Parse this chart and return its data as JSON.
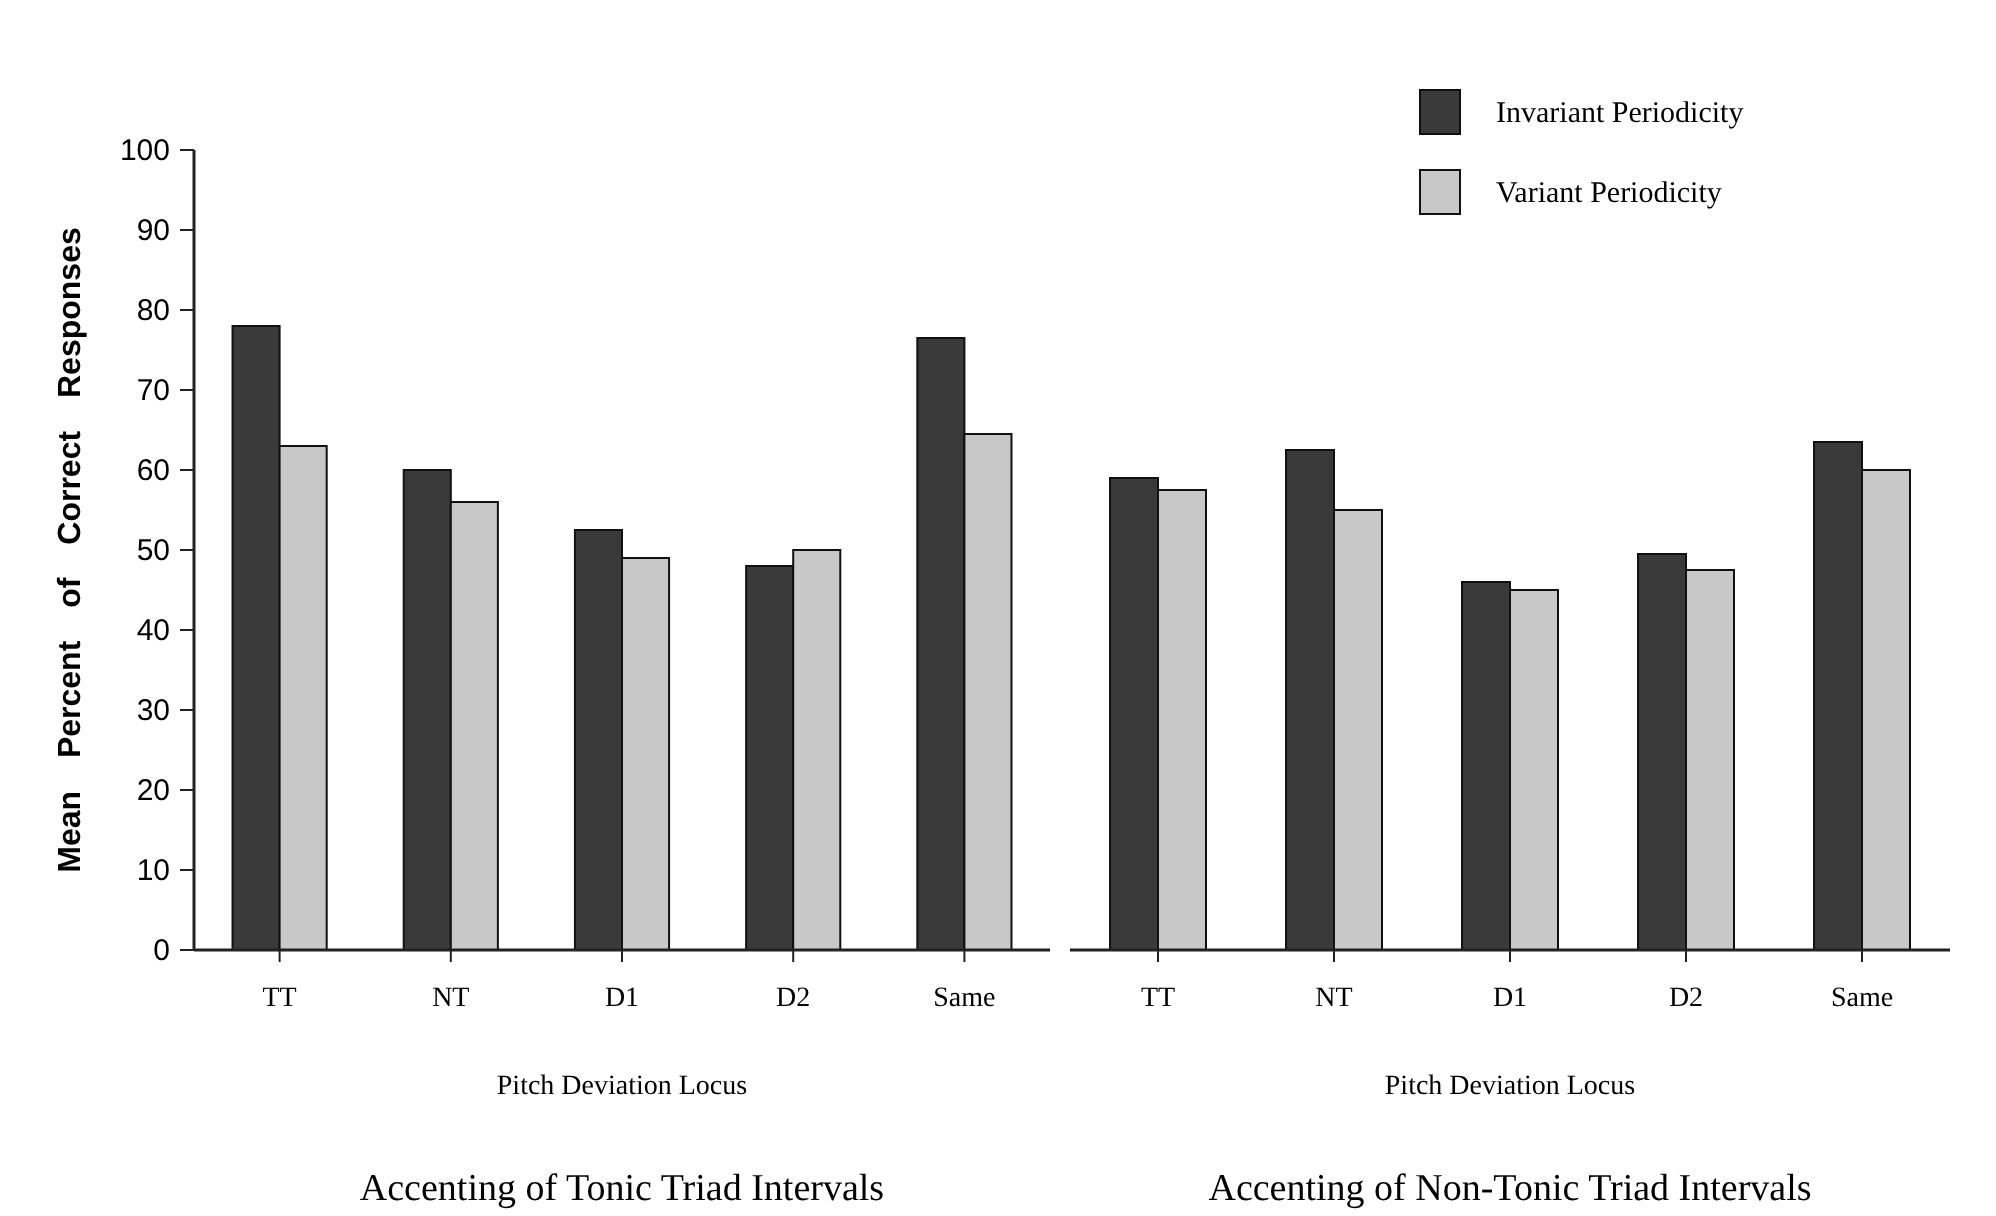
{
  "chart_data": [
    {
      "type": "bar",
      "title": "Accenting of Tonic Triad Intervals",
      "xlabel": "Pitch Deviation Locus",
      "ylabel": "Mean Percent of Correct Responses",
      "categories": [
        "TT",
        "NT",
        "D1",
        "D2",
        "Same"
      ],
      "series": [
        {
          "color": "#3a3a3a",
          "values": [
            78,
            60,
            52.5,
            48,
            76.5
          ]
        },
        {
          "color": "#c8c8c8",
          "values": [
            63,
            56,
            49,
            50,
            64.5
          ]
        }
      ],
      "ylim": [
        0,
        100
      ],
      "yticks": [
        0,
        10,
        20,
        30,
        40,
        50,
        60,
        70,
        80,
        90,
        100
      ],
      "grid": false,
      "legend": false
    },
    {
      "type": "bar",
      "title": "Accenting of Non-Tonic Triad Intervals",
      "xlabel": "Pitch Deviation Locus",
      "categories": [
        "TT",
        "NT",
        "D1",
        "D2",
        "Same"
      ],
      "series": [
        {
          "name": "Invariant Periodicity",
          "color": "#3a3a3a",
          "values": [
            59,
            62.5,
            46,
            49.5,
            63.5
          ]
        },
        {
          "name": "Variant Periodicity",
          "color": "#c8c8c8",
          "values": [
            57.5,
            55,
            45,
            47.5,
            60
          ]
        }
      ],
      "ylim": [
        0,
        100
      ],
      "tick_labels": "x",
      "grid": false,
      "legend": "top right"
    }
  ]
}
